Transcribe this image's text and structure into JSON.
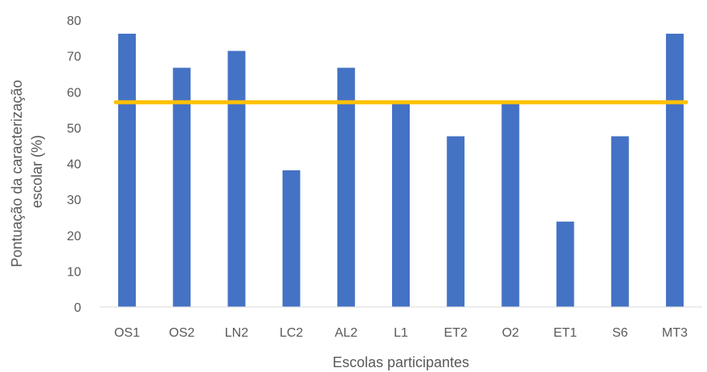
{
  "chart_data": {
    "type": "bar",
    "title": "",
    "xlabel": "Escolas participantes",
    "ylabel": [
      "Pontuação da caracterização",
      "escolar (%)"
    ],
    "categories": [
      "OS1",
      "OS2",
      "LN2",
      "LC2",
      "AL2",
      "L1",
      "ET2",
      "O2",
      "ET1",
      "S6",
      "MT3"
    ],
    "series": [
      {
        "values": [
          76.2,
          66.7,
          71.4,
          38.1,
          66.7,
          57.1,
          47.6,
          57.1,
          23.8,
          47.6,
          76.2
        ],
        "color": "#4472C4"
      }
    ],
    "reference_line": {
      "value": 57.1,
      "color": "#FFC000"
    },
    "ylim": [
      0,
      80
    ],
    "yticks": [
      0,
      10,
      20,
      30,
      40,
      50,
      60,
      70,
      80
    ],
    "grid": false,
    "axis_color": "#D9D9D9"
  }
}
